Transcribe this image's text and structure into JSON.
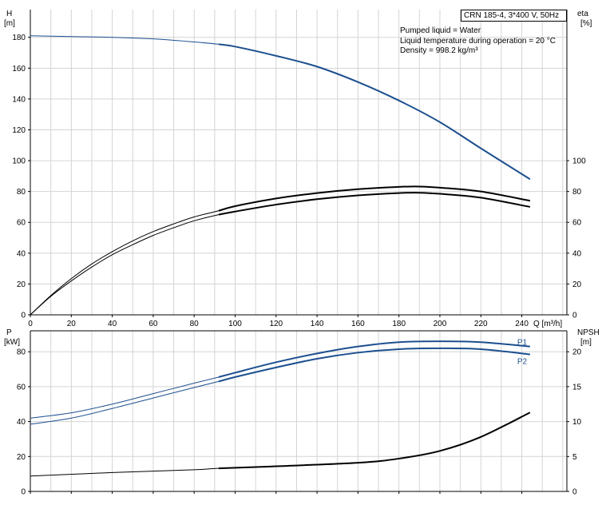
{
  "colors": {
    "blue": "#1c4f8f",
    "black": "#000000",
    "grid": "#d4d4d4",
    "axis": "#000000"
  },
  "info": {
    "pump": "CRN 185-4, 3*400 V, 50Hz",
    "lines": [
      "Pumped liquid = Water",
      "Liquid temperature during operation = 20 °C",
      "Density = 998.2 kg/m³"
    ]
  },
  "chart_data": [
    {
      "type": "line",
      "panel": "top",
      "xlabel": "Q [m³/h]",
      "y_left_label": [
        "H",
        "[m]"
      ],
      "y_right_label": [
        "eta",
        "[%]"
      ],
      "xlim": [
        0,
        262
      ],
      "ylim": [
        0,
        198
      ],
      "x_ticks": [
        0,
        20,
        40,
        60,
        80,
        100,
        120,
        140,
        160,
        180,
        200,
        220,
        240
      ],
      "y_left_ticks": [
        0,
        20,
        40,
        60,
        80,
        100,
        120,
        140,
        160,
        180
      ],
      "y_right_ticks": [
        0,
        20,
        40,
        60,
        80,
        100
      ],
      "grid": true,
      "duty_range_start": 92,
      "series": [
        {
          "color": "blue",
          "x": [
            0,
            20,
            40,
            60,
            80,
            92,
            100,
            120,
            140,
            160,
            180,
            200,
            220,
            244
          ],
          "values": [
            181,
            180.5,
            180,
            179,
            177,
            175.5,
            174,
            168,
            161,
            151,
            139,
            125,
            108,
            88
          ]
        },
        {
          "color": "black",
          "x": [
            0,
            10,
            20,
            30,
            40,
            50,
            60,
            70,
            80,
            92,
            100,
            120,
            140,
            160,
            180,
            190,
            200,
            220,
            244
          ],
          "values": [
            0,
            12,
            22,
            31,
            39,
            45.5,
            51.5,
            56.5,
            61,
            65,
            67,
            71.5,
            75,
            77.5,
            79,
            79.2,
            78.5,
            76,
            70
          ]
        },
        {
          "color": "black",
          "x": [
            0,
            10,
            20,
            30,
            40,
            50,
            60,
            70,
            80,
            92,
            100,
            120,
            140,
            160,
            180,
            190,
            200,
            220,
            244
          ],
          "values": [
            0,
            12.5,
            23.5,
            33,
            41,
            48,
            54,
            59,
            63.5,
            67.5,
            70.5,
            75.5,
            79,
            81.5,
            83,
            83.2,
            82.5,
            80,
            74
          ]
        }
      ]
    },
    {
      "type": "line",
      "panel": "bottom",
      "xlabel": "",
      "y_left_label": [
        "P",
        "[kW]"
      ],
      "y_right_label": [
        "NPSH",
        "[m]"
      ],
      "xlim": [
        0,
        262
      ],
      "ylim": [
        0,
        92
      ],
      "y_left_ticks": [
        0,
        20,
        40,
        60,
        80
      ],
      "y_right_ticks": [
        0,
        5,
        10,
        15,
        20
      ],
      "y_right_ylim": [
        0,
        23
      ],
      "grid": true,
      "duty_range_start": 92,
      "series": [
        {
          "name": "P1",
          "color": "blue",
          "x": [
            0,
            20,
            40,
            60,
            80,
            92,
            100,
            120,
            140,
            160,
            180,
            200,
            220,
            244
          ],
          "values": [
            42,
            45,
            50,
            56,
            62,
            65.5,
            68,
            74,
            79,
            83,
            85.5,
            86,
            85.5,
            83
          ]
        },
        {
          "name": "P2",
          "color": "blue",
          "x": [
            0,
            20,
            40,
            60,
            80,
            92,
            100,
            120,
            140,
            160,
            180,
            200,
            220,
            244
          ],
          "values": [
            38.5,
            42,
            47.5,
            53.5,
            59.5,
            63,
            65.5,
            71,
            76,
            79.5,
            81.5,
            82,
            81.5,
            78.5
          ]
        },
        {
          "color": "black",
          "axis": "right",
          "x": [
            0,
            40,
            80,
            92,
            120,
            160,
            180,
            200,
            220,
            244
          ],
          "values": [
            2.2,
            2.7,
            3.1,
            3.3,
            3.6,
            4.1,
            4.7,
            5.8,
            7.8,
            11.3
          ]
        }
      ]
    }
  ]
}
